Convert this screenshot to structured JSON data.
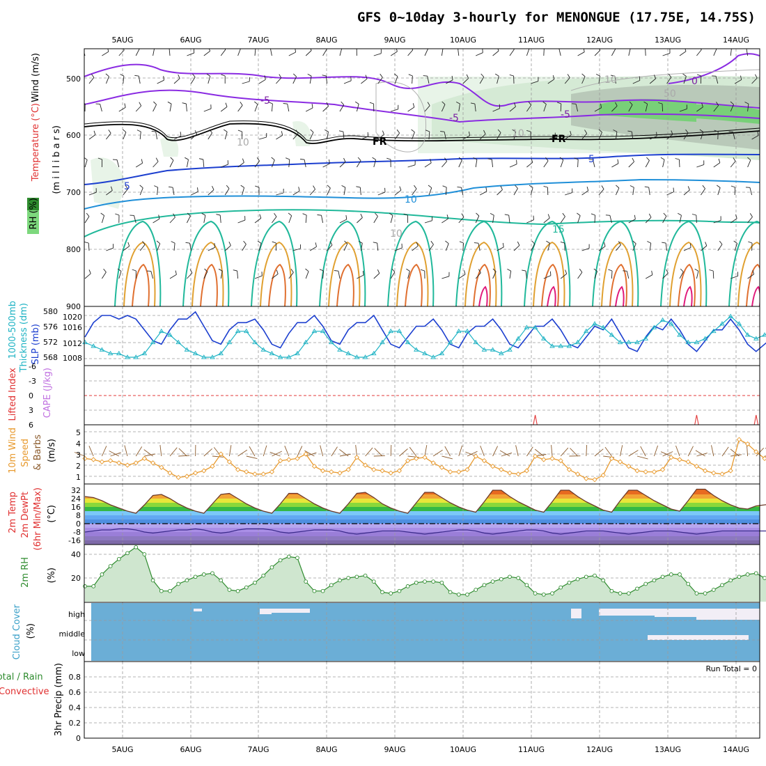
{
  "title": "GFS 0~10day 3-hourly for MENONGUE (17.75E, 14.75S)",
  "colors": {
    "dewpoint_line": "#3a2a8a",
    "slp": "#1c3fcf",
    "thickness": "#1fb3c4",
    "wind": "#e89a2e",
    "rh2m": "#2e8b2e",
    "cloud_bg": "#6baed6",
    "cloud_fill": "#f2eef6",
    "li_line": "#e33a3a",
    "fr_line": "#000000"
  },
  "days": [
    "5AUG",
    "6AUG",
    "7AUG",
    "8AUG",
    "9AUG",
    "10AUG",
    "11AUG",
    "12AUG",
    "13AUG",
    "14AUG"
  ],
  "panels": {
    "upper": {
      "labels": [
        {
          "text": "Wind (m/s)",
          "color": "#000000"
        },
        {
          "text": "Temperature (°C)",
          "color": "#e03030"
        },
        {
          "text": "(m i l l i b a r s)",
          "color": "#000000"
        },
        {
          "text": "RH (%)",
          "color": "#000000"
        }
      ],
      "ticks": [
        "500",
        "600",
        "700",
        "800",
        "900"
      ],
      "contour_labels": [
        "-5",
        "-5",
        "-5",
        "0",
        "5",
        "5",
        "10",
        "15",
        "10",
        "10",
        "10",
        "50",
        "10",
        "FR",
        "FR"
      ]
    },
    "slp": {
      "labels": [
        {
          "text": "1000-500mb",
          "color": "#1fb3c4"
        },
        {
          "text": "Thickness (dm)",
          "color": "#1fb3c4"
        },
        {
          "text": "SLP (mb)",
          "color": "#1c3fcf"
        }
      ],
      "ticks_left": [
        "580",
        "576",
        "572",
        "568"
      ],
      "ticks_right": [
        "1020",
        "1016",
        "1012",
        "1008"
      ]
    },
    "li": {
      "labels": [
        {
          "text": "Lifted Index",
          "color": "#e03030"
        },
        {
          "text": "CAPE (J/kg)",
          "color": "#c070e0"
        }
      ],
      "ticks": [
        "-6",
        "-3",
        "0",
        "3",
        "6"
      ]
    },
    "wind": {
      "labels": [
        {
          "text": "10m Wind",
          "color": "#e89a2e"
        },
        {
          "text": "Speed",
          "color": "#e89a2e"
        },
        {
          "text": "& Barbs",
          "color": "#8b5a2b"
        },
        {
          "text": "(m/s)",
          "color": "#000000"
        }
      ],
      "ticks": [
        "5",
        "4",
        "3",
        "2",
        "1"
      ]
    },
    "temp": {
      "labels": [
        {
          "text": "2m Temp",
          "color": "#e03030"
        },
        {
          "text": "2m DewPt",
          "color": "#e03030"
        },
        {
          "text": "(6hr Min/Max)",
          "color": "#e03030"
        },
        {
          "text": "(°C)",
          "color": "#000000"
        }
      ],
      "ticks": [
        "32",
        "24",
        "16",
        "8",
        "0",
        "-8",
        "-16"
      ]
    },
    "rh": {
      "labels": [
        {
          "text": "2m RH",
          "color": "#2e8b2e"
        },
        {
          "text": "(%)",
          "color": "#000000"
        }
      ],
      "ticks": [
        "40",
        "20"
      ]
    },
    "cloud": {
      "labels": [
        {
          "text": "Cloud Cover",
          "color": "#3aa0c8"
        },
        {
          "text": "(%)",
          "color": "#000000"
        }
      ],
      "ticks": [
        "high",
        "middle",
        "low"
      ]
    },
    "precip": {
      "labels": [
        {
          "text": "Total / Rain",
          "color": "#2e8b2e"
        },
        {
          "text": "Convective",
          "color": "#e03030"
        },
        {
          "text": "3hr Precip (mm)",
          "color": "#000000"
        }
      ],
      "ticks": [
        "0.8",
        "0.6",
        "0.4",
        "0.2",
        "0"
      ],
      "run_total": "Run Total = 0"
    }
  },
  "chart_data": [
    {
      "type": "line",
      "title": "1000-500mb Thickness (dm) / SLP (mb)",
      "x_unit": "3-hourly steps from 4 AUG 12Z",
      "series": [
        {
          "name": "SLP (mb)",
          "values": [
            1014,
            1018,
            1020,
            1020,
            1019,
            1020,
            1019,
            1016,
            1013,
            1012,
            1016,
            1019,
            1019,
            1021,
            1017,
            1013,
            1012,
            1016,
            1018,
            1018,
            1019,
            1016,
            1012,
            1011,
            1015,
            1018,
            1018,
            1020,
            1017,
            1013,
            1012,
            1016,
            1018,
            1018,
            1020,
            1016,
            1012,
            1011,
            1014,
            1017,
            1017,
            1019,
            1016,
            1012,
            1011,
            1015,
            1017,
            1017,
            1019,
            1016,
            1012,
            1011,
            1014,
            1017,
            1017,
            1019,
            1016,
            1012,
            1011,
            1014,
            1017,
            1016,
            1019,
            1015,
            1011,
            1010,
            1014,
            1017,
            1016,
            1019,
            1016,
            1012,
            1010,
            1013,
            1016,
            1016,
            1019,
            1016,
            1012,
            1010,
            1012,
            1014
          ]
        },
        {
          "name": "1000-500mb Thickness (dm)",
          "values": [
            572,
            571,
            570,
            569,
            569,
            568,
            568,
            569,
            572,
            575,
            574,
            572,
            570,
            569,
            568,
            568,
            569,
            572,
            575,
            575,
            572,
            570,
            569,
            568,
            568,
            569,
            572,
            575,
            575,
            572,
            570,
            569,
            568,
            568,
            569,
            572,
            575,
            575,
            572,
            570,
            569,
            568,
            569,
            572,
            575,
            575,
            572,
            570,
            570,
            569,
            570,
            573,
            576,
            576,
            573,
            571,
            571,
            571,
            572,
            575,
            577,
            576,
            574,
            572,
            572,
            572,
            573,
            576,
            578,
            577,
            574,
            572,
            572,
            573,
            575,
            577,
            579,
            577,
            574,
            573,
            574,
            575
          ]
        }
      ]
    },
    {
      "type": "line",
      "title": "10m Wind Speed (m/s)",
      "series": [
        {
          "name": "10m Wind Speed",
          "values": [
            2.6,
            2.5,
            2.3,
            2.4,
            2.2,
            2.0,
            2.2,
            2.6,
            2.2,
            1.8,
            1.3,
            0.9,
            1.0,
            1.3,
            1.5,
            1.9,
            3.0,
            2.3,
            1.6,
            1.4,
            1.2,
            1.2,
            1.4,
            2.4,
            2.5,
            2.6,
            3.0,
            1.9,
            1.5,
            1.4,
            1.3,
            1.6,
            2.7,
            2.0,
            1.6,
            1.5,
            1.3,
            1.5,
            2.4,
            2.6,
            2.7,
            2.2,
            1.8,
            1.4,
            1.4,
            1.6,
            2.8,
            2.4,
            1.9,
            1.6,
            1.3,
            1.2,
            1.5,
            2.8,
            2.5,
            2.6,
            2.4,
            1.6,
            1.2,
            0.8,
            0.7,
            1.1,
            2.6,
            2.3,
            1.9,
            1.5,
            1.4,
            1.4,
            1.6,
            2.7,
            2.5,
            2.3,
            1.9,
            1.5,
            1.3,
            1.2,
            1.5,
            4.3,
            3.9,
            3.2,
            2.6,
            2.3
          ]
        }
      ]
    },
    {
      "type": "area",
      "title": "2m Temp (°C)",
      "series": [
        {
          "name": "2m Temp",
          "values": [
            26,
            25,
            22,
            18,
            15,
            12,
            10,
            18,
            27,
            28,
            24,
            19,
            15,
            12,
            10,
            19,
            28,
            29,
            24,
            19,
            15,
            12,
            10,
            19,
            29,
            29,
            24,
            19,
            15,
            12,
            10,
            19,
            29,
            30,
            25,
            19,
            15,
            12,
            10,
            20,
            30,
            30,
            25,
            20,
            16,
            13,
            11,
            21,
            32,
            32,
            26,
            21,
            17,
            13,
            11,
            21,
            32,
            32,
            26,
            21,
            17,
            13,
            11,
            22,
            32,
            32,
            27,
            22,
            18,
            14,
            12,
            22,
            33,
            33,
            27,
            22,
            18,
            15,
            14,
            17,
            18,
            19
          ]
        },
        {
          "name": "2m DewPt",
          "values": [
            -8,
            -7,
            -6,
            -6,
            -5,
            -5,
            -6,
            -8,
            -9,
            -8,
            -7,
            -6,
            -6,
            -5,
            -6,
            -8,
            -9,
            -8,
            -6,
            -5,
            -5,
            -5,
            -6,
            -8,
            -9,
            -8,
            -7,
            -6,
            -6,
            -6,
            -7,
            -9,
            -10,
            -9,
            -8,
            -7,
            -7,
            -7,
            -8,
            -9,
            -10,
            -9,
            -8,
            -7,
            -6,
            -6,
            -7,
            -9,
            -10,
            -9,
            -8,
            -7,
            -6,
            -6,
            -7,
            -9,
            -10,
            -9,
            -8,
            -7,
            -7,
            -7,
            -8,
            -9,
            -10,
            -9,
            -8,
            -7,
            -7,
            -7,
            -8,
            -9,
            -10,
            -9,
            -8,
            -7,
            -7,
            -7,
            -7,
            -7,
            -7,
            -7
          ]
        }
      ]
    },
    {
      "type": "area",
      "title": "2m RH (%)",
      "series": [
        {
          "name": "2m RH",
          "values": [
            13,
            13,
            23,
            30,
            36,
            41,
            46,
            40,
            18,
            9,
            9,
            15,
            18,
            21,
            23,
            24,
            18,
            10,
            9,
            12,
            16,
            22,
            29,
            35,
            38,
            37,
            17,
            9,
            9,
            14,
            18,
            20,
            21,
            22,
            17,
            8,
            7,
            9,
            13,
            16,
            17,
            17,
            16,
            8,
            6,
            6,
            10,
            14,
            17,
            19,
            21,
            20,
            14,
            7,
            6,
            7,
            12,
            16,
            19,
            21,
            22,
            18,
            9,
            7,
            7,
            11,
            15,
            18,
            21,
            23,
            23,
            15,
            7,
            7,
            10,
            14,
            18,
            21,
            23,
            24,
            20,
            15
          ]
        }
      ]
    },
    {
      "type": "line",
      "title": "Lifted Index / CAPE",
      "ylim": [
        6,
        -6
      ],
      "series": [
        {
          "name": "Lifted Index",
          "values": [
            13,
            13,
            13,
            13,
            13,
            13,
            13,
            13,
            13,
            13,
            13,
            13,
            13,
            13,
            13,
            13,
            13,
            13,
            13,
            13,
            13,
            13,
            13,
            13,
            13,
            13,
            13,
            13,
            13,
            13,
            13,
            13,
            13,
            13,
            13,
            13,
            13,
            13,
            13,
            13,
            13,
            13,
            13,
            13,
            13,
            13,
            13,
            13,
            13,
            13,
            13,
            13,
            13,
            4,
            13,
            13,
            13,
            13,
            13,
            13,
            13,
            13,
            13,
            13,
            13,
            13,
            13,
            13,
            13,
            13,
            13,
            13,
            4,
            13,
            13,
            13,
            13,
            13,
            13,
            4,
            13,
            13
          ]
        }
      ]
    },
    {
      "type": "bar",
      "title": "3hr Precip (mm)",
      "ylim": [
        0,
        1
      ]
    }
  ]
}
